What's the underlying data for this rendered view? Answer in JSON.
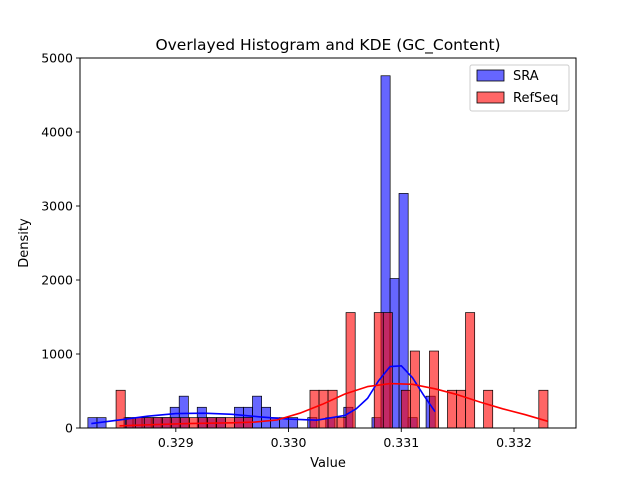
{
  "chart_data": {
    "type": "histogram",
    "title": "Overlayed Histogram and KDE (GC_Content)",
    "xlabel": "Value",
    "ylabel": "Density",
    "xlim": [
      0.32815,
      0.33255
    ],
    "ylim": [
      0,
      5000
    ],
    "xticks": [
      "0.329",
      "0.330",
      "0.331",
      "0.332"
    ],
    "xtick_values": [
      0.329,
      0.33,
      0.331,
      0.332
    ],
    "yticks": [
      "0",
      "1000",
      "2000",
      "3000",
      "4000",
      "5000"
    ],
    "ytick_values": [
      0,
      1000,
      2000,
      3000,
      4000,
      5000
    ],
    "legend": {
      "placement": "top-right",
      "entries": [
        "SRA",
        "RefSeq"
      ]
    },
    "grid": false,
    "series": [
      {
        "name": "SRA",
        "color": "#0000ff",
        "bin_width": 8.13e-05,
        "bins": [
          [
            0.32822,
            140
          ],
          [
            0.3283,
            140
          ],
          [
            0.32854,
            140
          ],
          [
            0.32862,
            140
          ],
          [
            0.3287,
            140
          ],
          [
            0.32879,
            140
          ],
          [
            0.32887,
            140
          ],
          [
            0.32895,
            280
          ],
          [
            0.32903,
            430
          ],
          [
            0.32919,
            280
          ],
          [
            0.32927,
            140
          ],
          [
            0.32936,
            140
          ],
          [
            0.32952,
            280
          ],
          [
            0.3296,
            280
          ],
          [
            0.32968,
            430
          ],
          [
            0.32976,
            280
          ],
          [
            0.32984,
            140
          ],
          [
            0.32992,
            140
          ],
          [
            0.33,
            140
          ],
          [
            0.33017,
            140
          ],
          [
            0.33033,
            140
          ],
          [
            0.33049,
            280
          ],
          [
            0.33074,
            140
          ],
          [
            0.33082,
            4760
          ],
          [
            0.3309,
            2020
          ],
          [
            0.33098,
            3170
          ],
          [
            0.33106,
            140
          ],
          [
            0.33122,
            430
          ]
        ],
        "kde": [
          [
            0.32825,
            60
          ],
          [
            0.3285,
            110
          ],
          [
            0.32875,
            160
          ],
          [
            0.329,
            195
          ],
          [
            0.32925,
            200
          ],
          [
            0.3295,
            185
          ],
          [
            0.32975,
            150
          ],
          [
            0.33,
            120
          ],
          [
            0.33025,
            105
          ],
          [
            0.3305,
            170
          ],
          [
            0.3306,
            260
          ],
          [
            0.3307,
            400
          ],
          [
            0.3308,
            640
          ],
          [
            0.3309,
            830
          ],
          [
            0.331,
            840
          ],
          [
            0.3311,
            680
          ],
          [
            0.3312,
            440
          ],
          [
            0.3313,
            220
          ]
        ]
      },
      {
        "name": "RefSeq",
        "color": "#ff0000",
        "bin_width": 8.13e-05,
        "bins": [
          [
            0.32847,
            510
          ],
          [
            0.32856,
            140
          ],
          [
            0.32864,
            140
          ],
          [
            0.32872,
            140
          ],
          [
            0.3288,
            140
          ],
          [
            0.32888,
            140
          ],
          [
            0.32896,
            140
          ],
          [
            0.32904,
            140
          ],
          [
            0.32912,
            140
          ],
          [
            0.3292,
            140
          ],
          [
            0.32928,
            140
          ],
          [
            0.32936,
            140
          ],
          [
            0.32944,
            140
          ],
          [
            0.32952,
            140
          ],
          [
            0.3296,
            140
          ],
          [
            0.33019,
            510
          ],
          [
            0.33027,
            510
          ],
          [
            0.33035,
            510
          ],
          [
            0.33043,
            140
          ],
          [
            0.33051,
            1560
          ],
          [
            0.33076,
            1560
          ],
          [
            0.33084,
            1560
          ],
          [
            0.331,
            510
          ],
          [
            0.33108,
            1040
          ],
          [
            0.33125,
            1040
          ],
          [
            0.33141,
            510
          ],
          [
            0.33149,
            510
          ],
          [
            0.33157,
            1560
          ],
          [
            0.33173,
            510
          ],
          [
            0.33222,
            510
          ]
        ],
        "kde": [
          [
            0.3285,
            30
          ],
          [
            0.3287,
            40
          ],
          [
            0.3289,
            50
          ],
          [
            0.3291,
            60
          ],
          [
            0.3293,
            65
          ],
          [
            0.3295,
            70
          ],
          [
            0.3297,
            80
          ],
          [
            0.3299,
            110
          ],
          [
            0.3301,
            200
          ],
          [
            0.3303,
            320
          ],
          [
            0.3305,
            460
          ],
          [
            0.3307,
            560
          ],
          [
            0.3309,
            600
          ],
          [
            0.3311,
            590
          ],
          [
            0.3313,
            530
          ],
          [
            0.3315,
            450
          ],
          [
            0.3317,
            350
          ],
          [
            0.3319,
            260
          ],
          [
            0.3321,
            180
          ],
          [
            0.3323,
            90
          ]
        ]
      }
    ]
  }
}
